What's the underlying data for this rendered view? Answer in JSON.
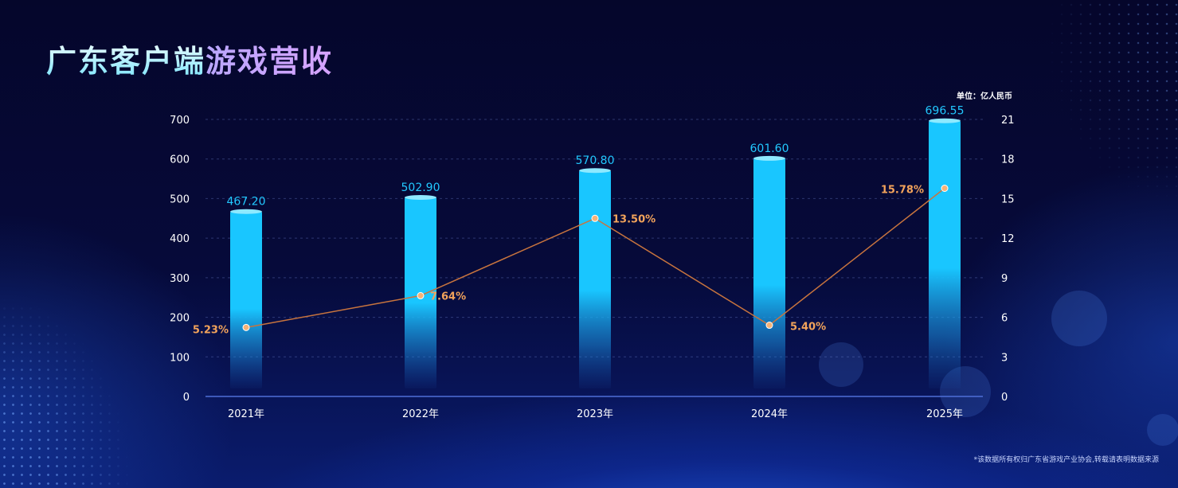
{
  "title": {
    "part1": "广东客户端",
    "part2": "游戏营收"
  },
  "unit_label": "单位：亿人民币",
  "footnote": "*该数据所有权归广东省游戏产业协会,转载请表明数据来源",
  "colors": {
    "bar": "#19c6ff",
    "line": "#c8743e",
    "point": "#f6b277",
    "rate_label": "#f2a35b",
    "bar_label": "#22c8ff"
  },
  "chart_data": {
    "type": "bar",
    "categories": [
      "2021年",
      "2022年",
      "2023年",
      "2024年",
      "2025年"
    ],
    "series": [
      {
        "type": "bar",
        "axis": "left",
        "values": [
          467.2,
          502.9,
          570.8,
          601.6,
          696.55
        ],
        "labels": [
          "467.20",
          "502.90",
          "570.80",
          "601.60",
          "696.55"
        ]
      },
      {
        "type": "line",
        "axis": "right",
        "values": [
          5.23,
          7.64,
          13.5,
          5.4,
          15.78
        ],
        "labels": [
          "5.23%",
          "7.64%",
          "13.50%",
          "5.40%",
          "15.78%"
        ]
      }
    ],
    "y_left": {
      "ylim": [
        0,
        700
      ],
      "ticks": [
        "0",
        "100",
        "200",
        "300",
        "400",
        "500",
        "600",
        "700"
      ]
    },
    "y_right": {
      "ylim": [
        0,
        21
      ],
      "ticks": [
        "0",
        "3",
        "6",
        "9",
        "12",
        "15",
        "18",
        "21"
      ]
    },
    "grid": true
  }
}
